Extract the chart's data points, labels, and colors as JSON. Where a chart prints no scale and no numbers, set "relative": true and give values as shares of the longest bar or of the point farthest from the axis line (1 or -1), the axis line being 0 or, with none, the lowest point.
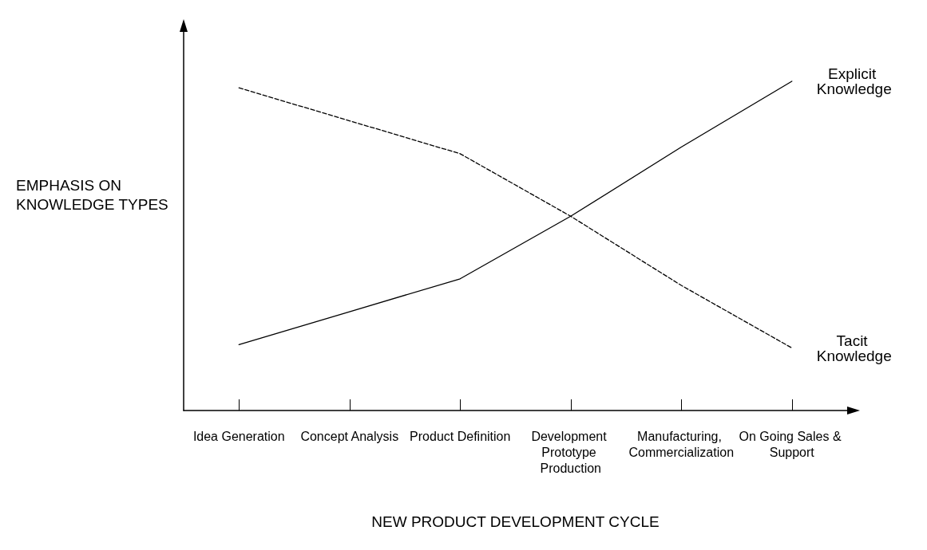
{
  "chart_data": {
    "type": "line",
    "relative": true,
    "xlabel": "NEW PRODUCT DEVELOPMENT CYCLE",
    "ylabel": "EMPHASIS ON KNOWLEDGE TYPES",
    "categories": [
      "Idea Generation",
      "Concept Analysis",
      "Product Definition",
      "Development Prototype Production",
      "Manufacturing, Commercialization",
      "On Going Sales & Support"
    ],
    "series": [
      {
        "name": "Explicit Knowledge",
        "color": "#000000",
        "line_style": "solid",
        "values": [
          0.2,
          0.3,
          0.4,
          0.59,
          0.8,
          1.0
        ]
      },
      {
        "name": "Tacit Knowledge",
        "color": "#000000",
        "line_style": "dashed",
        "values": [
          0.98,
          0.88,
          0.78,
          0.59,
          0.38,
          0.19
        ]
      }
    ],
    "legend": false,
    "grid": false,
    "marker": "none"
  }
}
